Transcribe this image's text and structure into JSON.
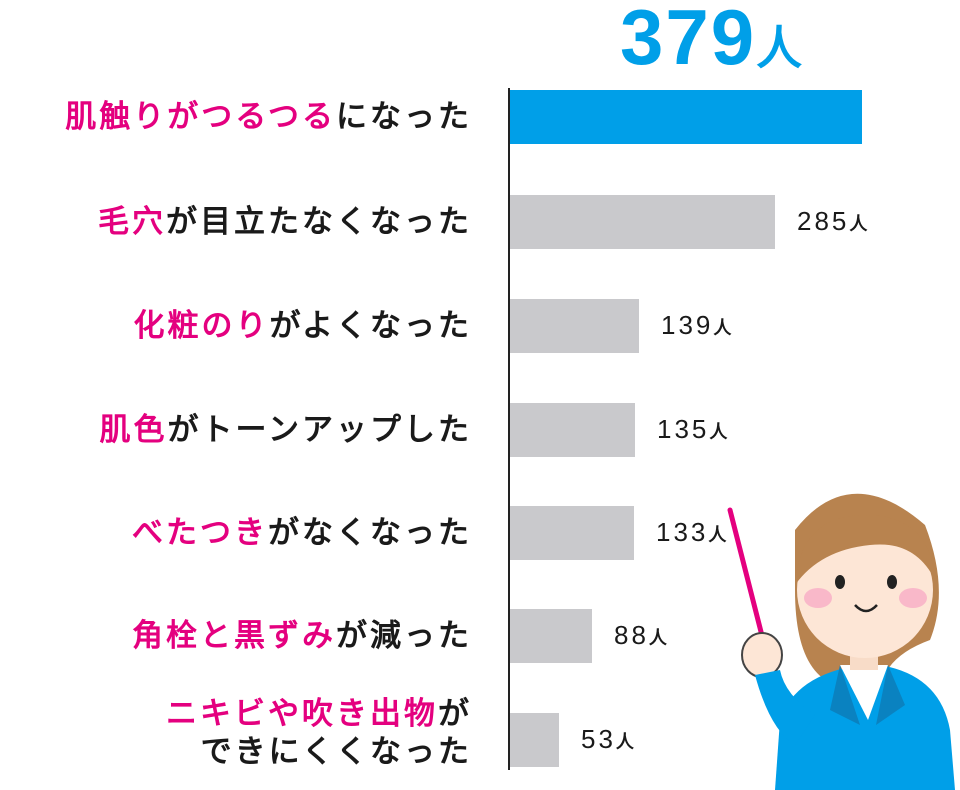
{
  "colors": {
    "accent": "#009fe8",
    "bar": "#c9c9cc",
    "highlight": "#e4007f",
    "text": "#1a1a1a"
  },
  "unit": "人",
  "chart_data": {
    "type": "bar",
    "orientation": "horizontal",
    "categories": [
      {
        "highlight": "肌触りがつるつる",
        "rest": "になった",
        "lines": [
          "肌触りがつるつるになった"
        ]
      },
      {
        "highlight": "毛穴",
        "rest": "が目立たなくなった",
        "lines": [
          "毛穴が目立たなくなった"
        ]
      },
      {
        "highlight": "化粧のり",
        "rest": "がよくなった",
        "lines": [
          "化粧のりがよくなった"
        ]
      },
      {
        "highlight": "肌色",
        "rest": "がトーンアップした",
        "lines": [
          "肌色がトーンアップした"
        ]
      },
      {
        "highlight": "べたつき",
        "rest": "がなくなった",
        "lines": [
          "べたつきがなくなった"
        ]
      },
      {
        "highlight": "角栓と黒ずみ",
        "rest": "が減った",
        "lines": [
          "角栓と黒ずみが減った"
        ]
      },
      {
        "highlight": "ニキビや吹き出物",
        "rest": "が",
        "line2": "できにくくなった"
      }
    ],
    "values": [
      379,
      285,
      139,
      135,
      133,
      88,
      53
    ],
    "value_labels": [
      "379",
      "285",
      "139",
      "135",
      "133",
      "88",
      "53"
    ],
    "xlim": [
      0,
      379
    ],
    "grid": false,
    "legend": "none"
  }
}
